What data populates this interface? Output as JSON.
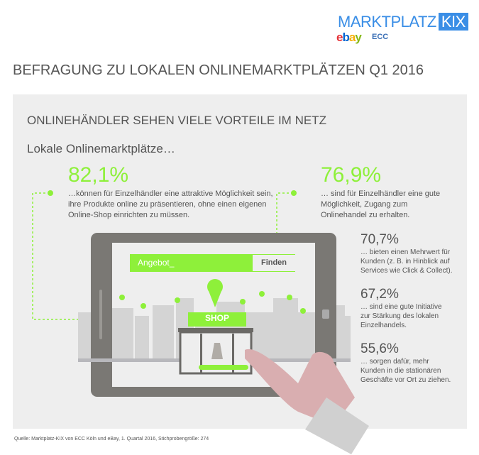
{
  "logo": {
    "title": "MARKTPLATZ",
    "badge": "KIX",
    "partner1": "ebay",
    "partner2": "ECC",
    "colors": {
      "brand": "#3a8ee6"
    }
  },
  "header": {
    "title": "BEFRAGUNG ZU LOKALEN ONLINEMARKTPLÄTZEN Q1 2016"
  },
  "panel": {
    "subtitle": "ONLINEHÄNDLER SEHEN VIELE VORTEILE IM NETZ",
    "lead": "Lokale Onlinemarktplätze…",
    "stats_main": [
      {
        "value": "82,1%",
        "text": "…können für Einzelhändler eine attraktive Möglichkeit sein, ihre Produkte online zu präsentieren, ohne einen eigenen Online-Shop einrichten zu müssen."
      },
      {
        "value": "76,9%",
        "text": "… sind für Einzelhändler eine gute Möglichkeit, Zugang zum Onlinehandel zu erhalten."
      }
    ],
    "stats_side": [
      {
        "value": "70,7%",
        "text": "… bieten einen Mehrwert für Kunden (z. B. in Hinblick auf Services wie Click & Collect)."
      },
      {
        "value": "67,2%",
        "text": "… sind eine gute Initiative zur Stärkung des lokalen Einzelhandels."
      },
      {
        "value": "55,6%",
        "text": "… sorgen dafür, mehr Kunden in die stationären Geschäfte vor Ort zu ziehen."
      }
    ],
    "tablet": {
      "search_value": "Angebot_",
      "search_button": "Finden",
      "shop_sign": "SHOP"
    },
    "colors": {
      "accent": "#8ef03a",
      "panel": "#eeeeee",
      "tablet": "#7a7874"
    }
  },
  "footer": {
    "source": "Quelle: Marktplatz-KIX von ECC Köln und eBay, 1. Quartal 2016, Stichprobengröße: 274"
  }
}
